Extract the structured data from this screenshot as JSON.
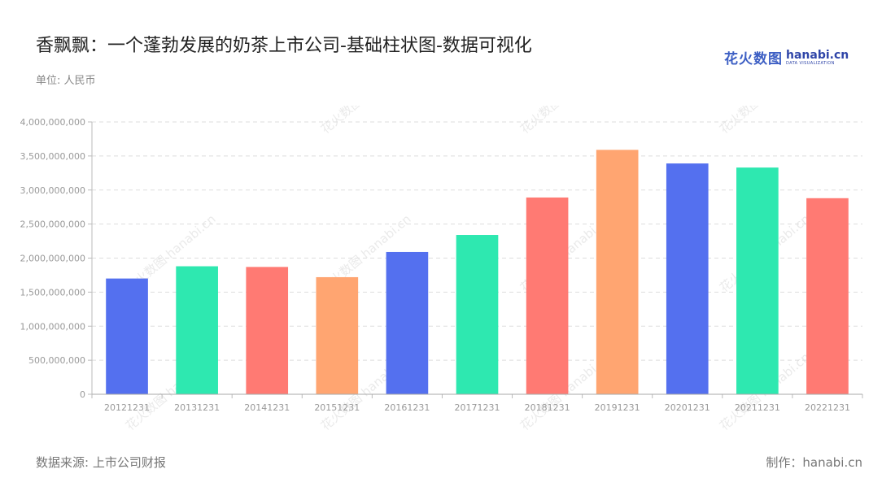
{
  "header": {
    "title": "香飘飘：一个蓬勃发展的奶茶上市公司-基础柱状图-数据可视化",
    "unit": "单位: 人民币"
  },
  "logo": {
    "cn": "花火数图",
    "en": "hanabi.cn",
    "sub": "DATA VISUALIZATION"
  },
  "watermark": {
    "cn": "花火数图",
    "en": "hanabi.cn"
  },
  "footer": {
    "source": "数据来源: 上市公司财报",
    "credit": "制作：hanabi.cn"
  },
  "chart_data": {
    "type": "bar",
    "categories": [
      "20121231",
      "20131231",
      "20141231",
      "20151231",
      "20161231",
      "20171231",
      "20181231",
      "20191231",
      "20201231",
      "20211231",
      "20221231"
    ],
    "values": [
      1700000000,
      1880000000,
      1870000000,
      1720000000,
      2090000000,
      2340000000,
      2890000000,
      3590000000,
      3390000000,
      3330000000,
      2880000000
    ],
    "ylim": [
      0,
      4000000000
    ],
    "yticks": [
      0,
      500000000,
      1000000000,
      1500000000,
      2000000000,
      2500000000,
      3000000000,
      3500000000,
      4000000000
    ],
    "ytick_labels": [
      "0",
      "500,000,000",
      "1,000,000,000",
      "1,500,000,000",
      "2,000,000,000",
      "2,500,000,000",
      "3,000,000,000",
      "3,500,000,000",
      "4,000,000,000"
    ],
    "bar_colors": [
      "#5470ef",
      "#2ee8b0",
      "#ff7a73",
      "#ffa571",
      "#5470ef",
      "#2ee8b0",
      "#ff7a73",
      "#ffa571",
      "#5470ef",
      "#2ee8b0",
      "#ff7a73"
    ],
    "grid": true,
    "grid_style": "dashed"
  }
}
